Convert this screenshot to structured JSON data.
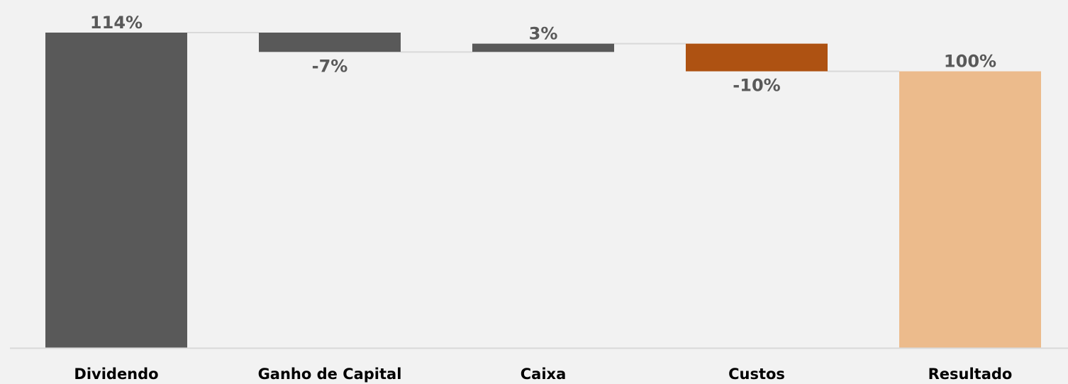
{
  "chart_data": {
    "type": "waterfall",
    "title": "",
    "xlabel": "",
    "ylabel": "",
    "ylim": [
      0,
      114
    ],
    "grid": false,
    "legend": "none",
    "categories": [
      "Dividendo",
      "Ganho de Capital",
      "Caixa",
      "Custos",
      "Resultado"
    ],
    "values": [
      114,
      -7,
      3,
      -10,
      100
    ],
    "value_labels": [
      "114%",
      "-7%",
      "3%",
      "-10%",
      "100%"
    ],
    "kinds": [
      "total",
      "delta",
      "delta",
      "delta",
      "total"
    ],
    "colors": [
      "#595959",
      "#595959",
      "#595959",
      "#ae5212",
      "#ecbb8c"
    ],
    "connector_color": "#d9d9d9",
    "axis_color": "#d9d9d9",
    "background": "#f2f2f2"
  }
}
